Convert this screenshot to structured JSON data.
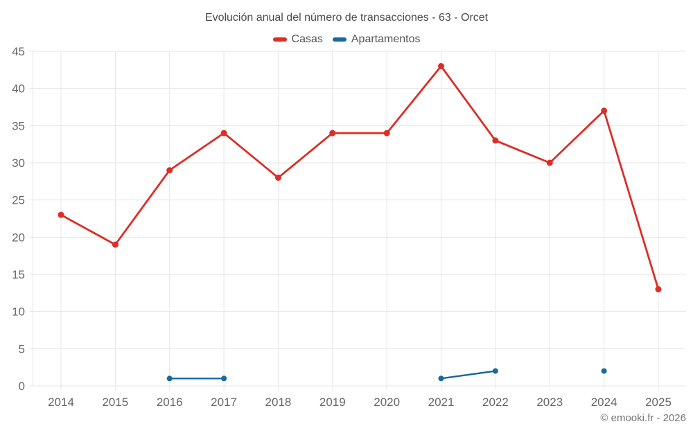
{
  "chart": {
    "title": "Evolución anual del número de transacciones - 63 - Orcet",
    "attribution": "© emooki.fr - 2026"
  },
  "chart_data": {
    "type": "line",
    "title": "Evolución anual del número de transacciones - 63 - Orcet",
    "x": [
      2014,
      2015,
      2016,
      2017,
      2018,
      2019,
      2020,
      2021,
      2022,
      2023,
      2024,
      2025
    ],
    "series": [
      {
        "name": "Casas",
        "color": "#dc2d26",
        "values": [
          23,
          19,
          29,
          34,
          28,
          34,
          34,
          43,
          33,
          30,
          37,
          13
        ]
      },
      {
        "name": "Apartamentos",
        "color": "#17699e",
        "values": [
          null,
          null,
          1,
          1,
          null,
          null,
          null,
          1,
          2,
          null,
          2,
          null
        ]
      }
    ],
    "xlabel": "",
    "ylabel": "",
    "ylim": [
      0,
      45
    ],
    "ytick_step": 5,
    "grid": true,
    "legend_position": "top",
    "grid_color": "#e5e5e5",
    "axis_text_color": "#666666"
  }
}
